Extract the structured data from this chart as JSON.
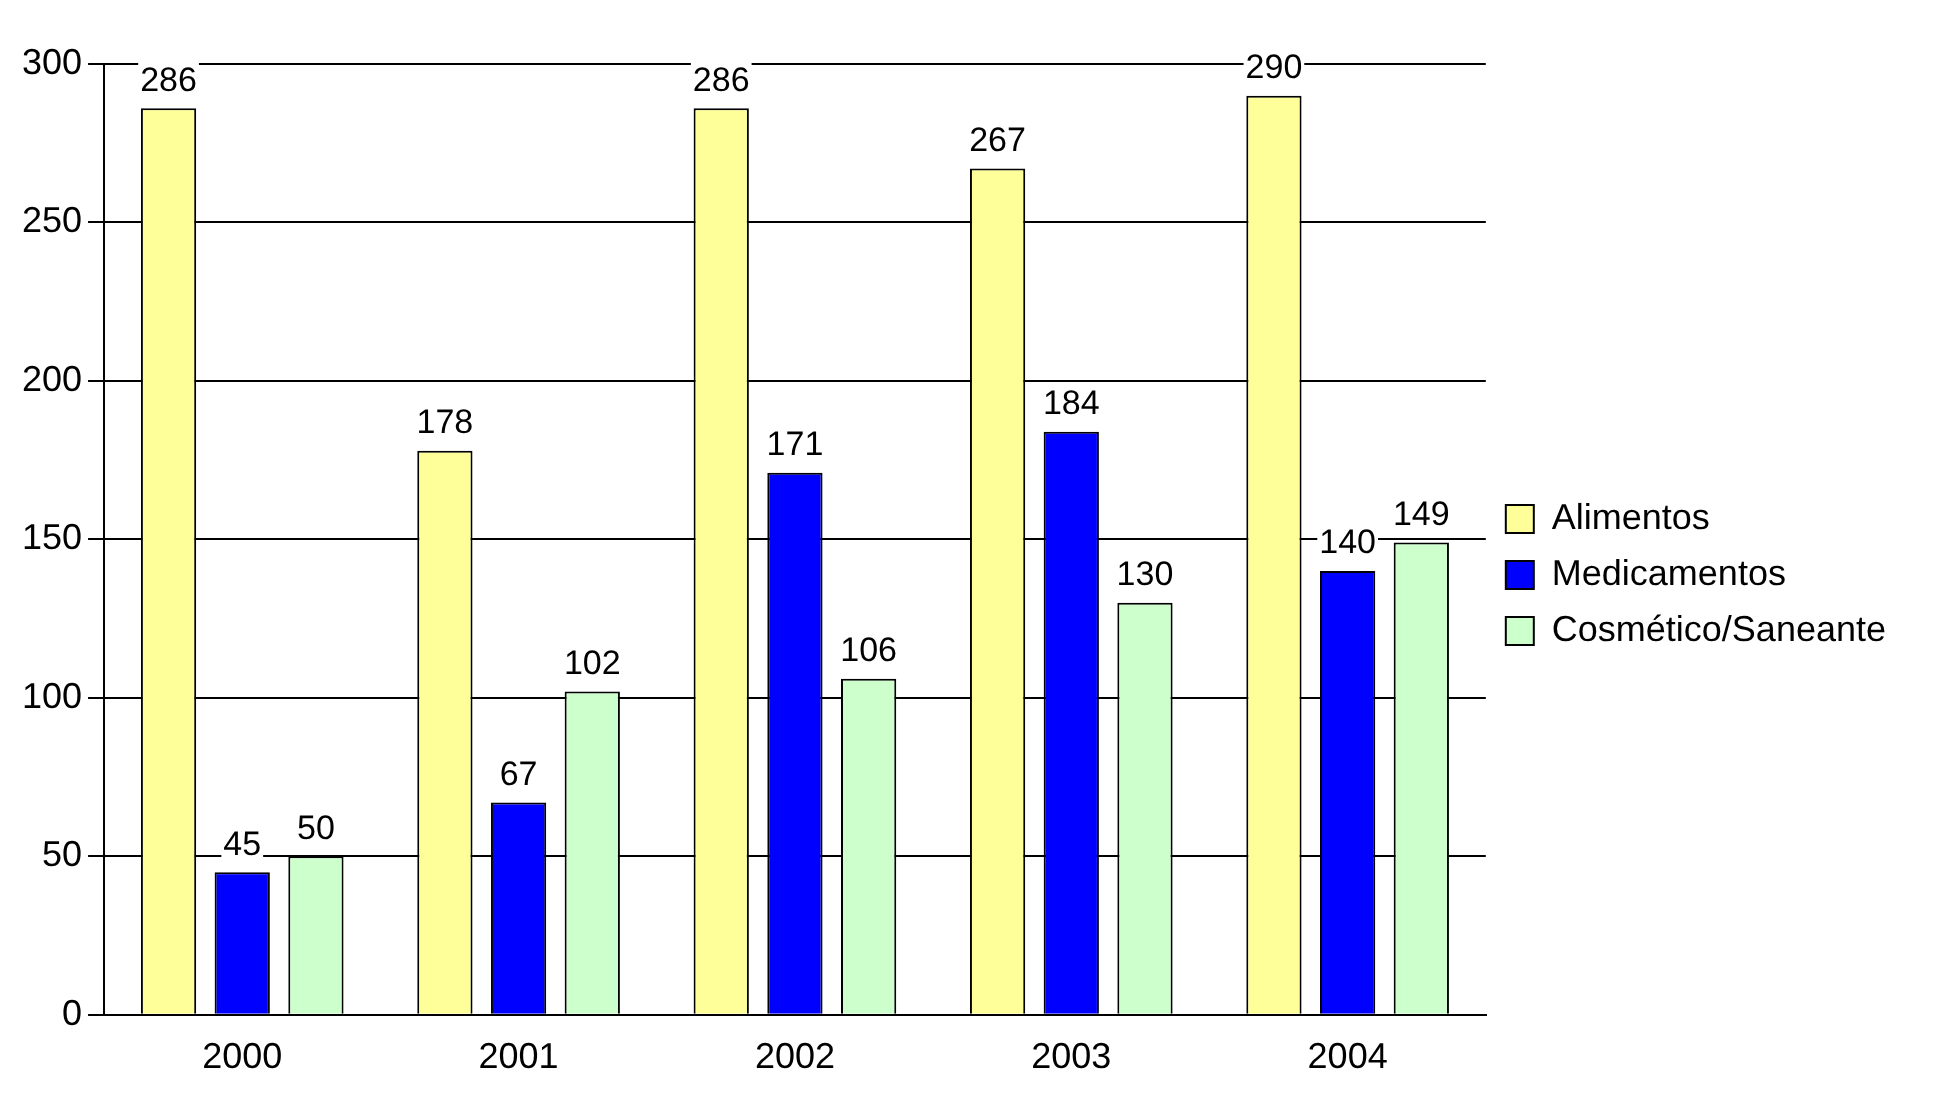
{
  "chart_data": {
    "type": "bar",
    "categories": [
      "2000",
      "2001",
      "2002",
      "2003",
      "2004"
    ],
    "series": [
      {
        "name": "Alimentos",
        "color": "#ffff99",
        "values": [
          286,
          178,
          286,
          267,
          290
        ]
      },
      {
        "name": "Medicamentos",
        "color": "#0000ff",
        "values": [
          45,
          67,
          171,
          184,
          140
        ]
      },
      {
        "name": "Cosmético/Saneante",
        "color": "#ccffcc",
        "values": [
          50,
          102,
          106,
          130,
          149
        ]
      }
    ],
    "ylim": [
      0,
      300
    ],
    "yticks": [
      0,
      50,
      100,
      150,
      200,
      250,
      300
    ],
    "grid": "y",
    "legend": "right",
    "data_labels": true
  }
}
